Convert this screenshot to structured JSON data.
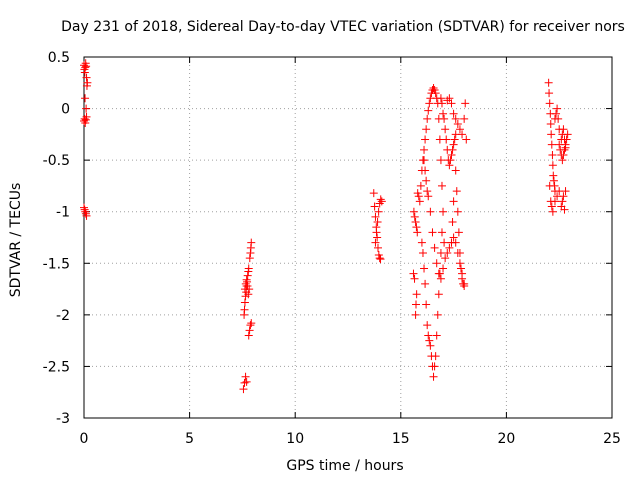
{
  "chart_data": {
    "type": "scatter",
    "title": "Day 231 of 2018, Sidereal Day-to-day VTEC variation (SDTVAR) for receiver nors",
    "xlabel": "GPS time / hours",
    "ylabel": "SDTVAR / TECUs",
    "xlim": [
      0,
      25
    ],
    "ylim": [
      -3,
      0.5
    ],
    "xticks": [
      "0",
      "5",
      "10",
      "15",
      "20",
      "25"
    ],
    "yticks": [
      "0.5",
      "0",
      "-0.5",
      "-1",
      "-1.5",
      "-2",
      "-2.5",
      "-3"
    ],
    "grid": true,
    "marker": "+",
    "marker_color": "#ff0000",
    "series": [
      {
        "name": "SDTVAR",
        "points": [
          [
            0.0,
            0.42
          ],
          [
            0.02,
            0.38
          ],
          [
            0.04,
            0.35
          ],
          [
            0.06,
            0.4
          ],
          [
            0.08,
            0.44
          ],
          [
            0.1,
            0.41
          ],
          [
            0.12,
            0.3
          ],
          [
            0.14,
            0.22
          ],
          [
            0.16,
            0.25
          ],
          [
            0.05,
            0.1
          ],
          [
            0.1,
            0.0
          ],
          [
            0.0,
            -0.12
          ],
          [
            0.03,
            -0.1
          ],
          [
            0.06,
            -0.14
          ],
          [
            0.09,
            -0.11
          ],
          [
            0.12,
            -0.08
          ],
          [
            0.0,
            -0.96
          ],
          [
            0.03,
            -0.98
          ],
          [
            0.06,
            -1.0
          ],
          [
            0.09,
            -1.02
          ],
          [
            0.12,
            -1.04
          ],
          [
            7.55,
            -2.72
          ],
          [
            7.6,
            -2.66
          ],
          [
            7.65,
            -2.6
          ],
          [
            7.7,
            -2.65
          ],
          [
            7.58,
            -2.0
          ],
          [
            7.6,
            -1.95
          ],
          [
            7.62,
            -1.88
          ],
          [
            7.65,
            -1.82
          ],
          [
            7.68,
            -1.78
          ],
          [
            7.7,
            -1.72
          ],
          [
            7.72,
            -1.68
          ],
          [
            7.75,
            -1.62
          ],
          [
            7.78,
            -1.58
          ],
          [
            7.8,
            -1.55
          ],
          [
            7.62,
            -1.75
          ],
          [
            7.66,
            -1.7
          ],
          [
            7.7,
            -1.66
          ],
          [
            7.74,
            -1.72
          ],
          [
            7.78,
            -1.8
          ],
          [
            7.82,
            -1.75
          ],
          [
            7.85,
            -1.45
          ],
          [
            7.88,
            -1.4
          ],
          [
            7.9,
            -1.35
          ],
          [
            7.92,
            -1.3
          ],
          [
            7.8,
            -2.2
          ],
          [
            7.84,
            -2.15
          ],
          [
            7.88,
            -2.1
          ],
          [
            7.92,
            -2.08
          ],
          [
            13.72,
            -0.82
          ],
          [
            13.76,
            -0.95
          ],
          [
            13.8,
            -1.05
          ],
          [
            13.84,
            -1.15
          ],
          [
            13.88,
            -1.25
          ],
          [
            13.92,
            -1.35
          ],
          [
            13.96,
            -1.42
          ],
          [
            14.0,
            -1.45
          ],
          [
            14.04,
            -1.46
          ],
          [
            13.8,
            -1.3
          ],
          [
            13.85,
            -1.2
          ],
          [
            13.9,
            -1.1
          ],
          [
            13.95,
            -1.0
          ],
          [
            14.0,
            -0.92
          ],
          [
            14.05,
            -0.88
          ],
          [
            14.1,
            -0.9
          ],
          [
            15.6,
            -1.6
          ],
          [
            15.65,
            -1.65
          ],
          [
            15.7,
            -2.0
          ],
          [
            15.72,
            -1.9
          ],
          [
            15.75,
            -1.8
          ],
          [
            15.62,
            -1.0
          ],
          [
            15.66,
            -1.05
          ],
          [
            15.7,
            -1.1
          ],
          [
            15.74,
            -1.15
          ],
          [
            15.78,
            -1.2
          ],
          [
            15.8,
            -0.82
          ],
          [
            15.85,
            -0.85
          ],
          [
            15.9,
            -0.9
          ],
          [
            15.95,
            -0.75
          ],
          [
            16.0,
            -0.6
          ],
          [
            16.05,
            -0.5
          ],
          [
            16.1,
            -0.4
          ],
          [
            16.15,
            -0.3
          ],
          [
            16.2,
            -0.2
          ],
          [
            16.25,
            -0.1
          ],
          [
            16.3,
            -0.02
          ],
          [
            16.35,
            0.05
          ],
          [
            16.4,
            0.1
          ],
          [
            16.45,
            0.15
          ],
          [
            16.5,
            0.18
          ],
          [
            16.55,
            0.2
          ],
          [
            16.6,
            0.18
          ],
          [
            16.65,
            0.15
          ],
          [
            16.7,
            0.1
          ],
          [
            16.75,
            0.05
          ],
          [
            16.8,
            -0.1
          ],
          [
            16.85,
            -0.3
          ],
          [
            16.9,
            -0.5
          ],
          [
            16.95,
            -0.75
          ],
          [
            17.0,
            -1.0
          ],
          [
            17.05,
            -1.3
          ],
          [
            16.0,
            -1.3
          ],
          [
            16.05,
            -1.4
          ],
          [
            16.1,
            -1.55
          ],
          [
            16.15,
            -1.7
          ],
          [
            16.2,
            -1.9
          ],
          [
            16.25,
            -2.1
          ],
          [
            16.3,
            -2.2
          ],
          [
            16.35,
            -2.25
          ],
          [
            16.4,
            -2.3
          ],
          [
            16.45,
            -2.4
          ],
          [
            16.5,
            -2.5
          ],
          [
            16.55,
            -2.6
          ],
          [
            16.6,
            -2.5
          ],
          [
            16.65,
            -2.4
          ],
          [
            16.7,
            -2.2
          ],
          [
            16.75,
            -2.0
          ],
          [
            16.8,
            -1.8
          ],
          [
            16.85,
            -1.6
          ],
          [
            16.9,
            -1.4
          ],
          [
            16.95,
            -1.2
          ],
          [
            16.1,
            -0.5
          ],
          [
            16.15,
            -0.6
          ],
          [
            16.2,
            -0.7
          ],
          [
            16.25,
            -0.8
          ],
          [
            16.3,
            -0.85
          ],
          [
            16.4,
            -1.0
          ],
          [
            16.5,
            -1.2
          ],
          [
            16.6,
            -1.35
          ],
          [
            16.7,
            -1.5
          ],
          [
            16.8,
            -1.6
          ],
          [
            16.9,
            -1.65
          ],
          [
            17.0,
            -1.55
          ],
          [
            17.1,
            -1.45
          ],
          [
            17.2,
            -1.4
          ],
          [
            17.3,
            -1.35
          ],
          [
            17.4,
            -1.3
          ],
          [
            17.5,
            -1.25
          ],
          [
            17.6,
            -1.3
          ],
          [
            17.7,
            -1.4
          ],
          [
            17.8,
            -1.5
          ],
          [
            17.9,
            -1.6
          ],
          [
            18.0,
            -1.7
          ],
          [
            16.9,
            0.1
          ],
          [
            16.95,
            0.05
          ],
          [
            17.0,
            -0.05
          ],
          [
            17.05,
            -0.1
          ],
          [
            17.1,
            -0.2
          ],
          [
            17.15,
            -0.3
          ],
          [
            17.2,
            -0.4
          ],
          [
            17.25,
            -0.5
          ],
          [
            17.3,
            -0.55
          ],
          [
            17.35,
            -0.5
          ],
          [
            17.4,
            -0.45
          ],
          [
            17.45,
            -0.4
          ],
          [
            17.5,
            -0.35
          ],
          [
            17.55,
            -0.3
          ],
          [
            17.6,
            -0.25
          ],
          [
            17.2,
            0.08
          ],
          [
            17.3,
            0.1
          ],
          [
            17.4,
            0.05
          ],
          [
            17.5,
            -0.05
          ],
          [
            17.6,
            -0.1
          ],
          [
            17.7,
            -0.15
          ],
          [
            17.8,
            -0.2
          ],
          [
            17.9,
            -0.25
          ],
          [
            18.0,
            -0.1
          ],
          [
            18.05,
            0.05
          ],
          [
            18.1,
            -0.3
          ],
          [
            17.6,
            -0.6
          ],
          [
            17.65,
            -0.8
          ],
          [
            17.7,
            -1.0
          ],
          [
            17.75,
            -1.2
          ],
          [
            17.8,
            -1.4
          ],
          [
            17.85,
            -1.55
          ],
          [
            17.9,
            -1.65
          ],
          [
            17.95,
            -1.7
          ],
          [
            18.0,
            -1.72
          ],
          [
            17.5,
            -0.9
          ],
          [
            17.45,
            -1.1
          ],
          [
            17.4,
            -1.3
          ],
          [
            22.0,
            0.25
          ],
          [
            22.02,
            0.15
          ],
          [
            22.05,
            0.05
          ],
          [
            22.08,
            -0.05
          ],
          [
            22.1,
            -0.15
          ],
          [
            22.12,
            -0.25
          ],
          [
            22.15,
            -0.35
          ],
          [
            22.18,
            -0.45
          ],
          [
            22.2,
            -0.55
          ],
          [
            22.22,
            -0.65
          ],
          [
            22.25,
            -0.7
          ],
          [
            22.28,
            -0.75
          ],
          [
            22.3,
            -0.8
          ],
          [
            22.05,
            -0.75
          ],
          [
            22.1,
            -0.9
          ],
          [
            22.15,
            -0.95
          ],
          [
            22.2,
            -1.0
          ],
          [
            22.3,
            -0.9
          ],
          [
            22.4,
            -0.85
          ],
          [
            22.5,
            -0.8
          ],
          [
            22.6,
            -0.3
          ],
          [
            22.65,
            -0.25
          ],
          [
            22.7,
            -0.2
          ],
          [
            22.75,
            -0.3
          ],
          [
            22.8,
            -0.35
          ],
          [
            22.85,
            -0.3
          ],
          [
            22.9,
            -0.25
          ],
          [
            22.5,
            -0.35
          ],
          [
            22.55,
            -0.4
          ],
          [
            22.6,
            -0.45
          ],
          [
            22.65,
            -0.5
          ],
          [
            22.7,
            -0.45
          ],
          [
            22.75,
            -0.4
          ],
          [
            22.8,
            -0.38
          ],
          [
            22.3,
            -0.1
          ],
          [
            22.35,
            -0.05
          ],
          [
            22.4,
            0.0
          ],
          [
            22.45,
            -0.1
          ],
          [
            22.5,
            -0.2
          ],
          [
            22.6,
            -0.95
          ],
          [
            22.65,
            -0.9
          ],
          [
            22.7,
            -0.85
          ],
          [
            22.75,
            -0.98
          ],
          [
            22.8,
            -0.8
          ]
        ]
      }
    ]
  }
}
